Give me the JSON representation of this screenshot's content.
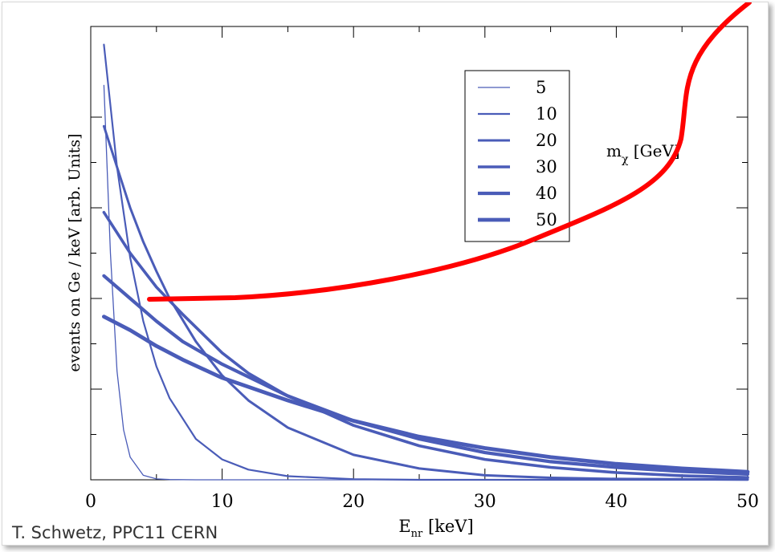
{
  "credit": "T. Schwetz, PPC11 CERN",
  "chart_data": {
    "type": "line",
    "xlabel": "E",
    "xlabel_sub": "nr",
    "xlabel_unit": "[keV]",
    "ylabel": "events on Ge / keV [arb. Units]",
    "xlim": [
      0,
      50
    ],
    "xticks": [
      "0",
      "10",
      "20",
      "30",
      "40",
      "50"
    ],
    "legend_title": "m",
    "legend_title_sub": "χ",
    "legend_title_unit": "[GeV]",
    "legend_position": "top-right",
    "grid": false,
    "line_color": "#4a5cb8",
    "annotation_color": "#ff0000",
    "series": [
      {
        "name": "5",
        "x": [
          1,
          1.5,
          2,
          2.5,
          3,
          4,
          5,
          6,
          8,
          10,
          15,
          20,
          30,
          40,
          50
        ],
        "values": [
          1.74,
          1.0,
          0.48,
          0.22,
          0.1,
          0.02,
          0.004,
          0.001,
          0,
          0,
          0,
          0,
          0,
          0,
          0
        ]
      },
      {
        "name": "10",
        "x": [
          1,
          2,
          3,
          4,
          5,
          6,
          8,
          10,
          12,
          15,
          20,
          25,
          30,
          40,
          50
        ],
        "values": [
          1.92,
          1.38,
          0.98,
          0.7,
          0.5,
          0.36,
          0.18,
          0.09,
          0.045,
          0.016,
          0.003,
          0,
          0,
          0,
          0
        ]
      },
      {
        "name": "20",
        "x": [
          1,
          2,
          3,
          4,
          5,
          6,
          8,
          10,
          12,
          15,
          20,
          25,
          30,
          35,
          40,
          50
        ],
        "values": [
          1.56,
          1.38,
          1.2,
          1.05,
          0.92,
          0.8,
          0.61,
          0.46,
          0.35,
          0.23,
          0.11,
          0.05,
          0.02,
          0.009,
          0.004,
          0.001
        ]
      },
      {
        "name": "30",
        "x": [
          1,
          3,
          5,
          7,
          10,
          12,
          15,
          20,
          25,
          30,
          35,
          40,
          45,
          50
        ],
        "values": [
          1.18,
          1.0,
          0.85,
          0.73,
          0.56,
          0.47,
          0.37,
          0.24,
          0.15,
          0.09,
          0.055,
          0.032,
          0.018,
          0.01
        ]
      },
      {
        "name": "40",
        "x": [
          1,
          3,
          5,
          7,
          10,
          15,
          20,
          25,
          30,
          35,
          40,
          45,
          50
        ],
        "values": [
          0.9,
          0.8,
          0.7,
          0.61,
          0.51,
          0.37,
          0.26,
          0.18,
          0.12,
          0.08,
          0.055,
          0.037,
          0.025
        ]
      },
      {
        "name": "50",
        "x": [
          1,
          3,
          5,
          7,
          10,
          15,
          20,
          25,
          30,
          35,
          40,
          45,
          50
        ],
        "values": [
          0.72,
          0.66,
          0.59,
          0.53,
          0.45,
          0.35,
          0.26,
          0.19,
          0.14,
          0.1,
          0.07,
          0.05,
          0.035
        ]
      }
    ]
  }
}
